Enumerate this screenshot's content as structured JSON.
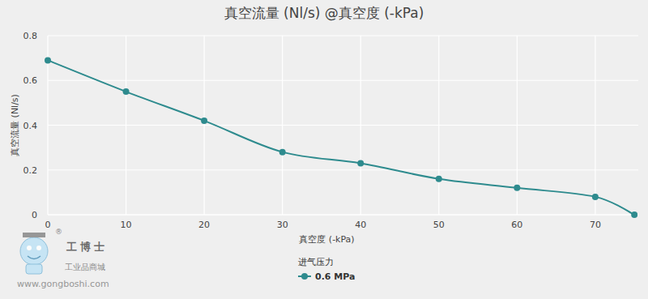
{
  "chart_data": {
    "type": "line",
    "title": "真空流量 (Nl/s) @真空度 (-kPa)",
    "x_label": "真空度 (-kPa)",
    "y_label": "真空流量 (Nl/s)",
    "legend_title": "进气压力",
    "x": [
      0,
      10,
      20,
      30,
      40,
      50,
      60,
      70,
      75
    ],
    "series": [
      {
        "name": "0.6 MPa",
        "color": "#2e8b8e",
        "marker": "circle",
        "line_style": "solid",
        "values": [
          0.69,
          0.55,
          0.42,
          0.28,
          0.23,
          0.16,
          0.12,
          0.08,
          0.0
        ]
      }
    ],
    "xlim": [
      0,
      75.5
    ],
    "xticks": [
      0,
      10,
      20,
      30,
      40,
      50,
      60,
      70
    ],
    "ylim": [
      0,
      0.8
    ],
    "yticks": [
      0,
      0.2,
      0.4,
      0.6,
      0.8
    ],
    "grid": true,
    "legend": "bottom",
    "annotations": [
      "工博士",
      "工业品商城",
      "www.gongboshi.com",
      "®"
    ]
  }
}
